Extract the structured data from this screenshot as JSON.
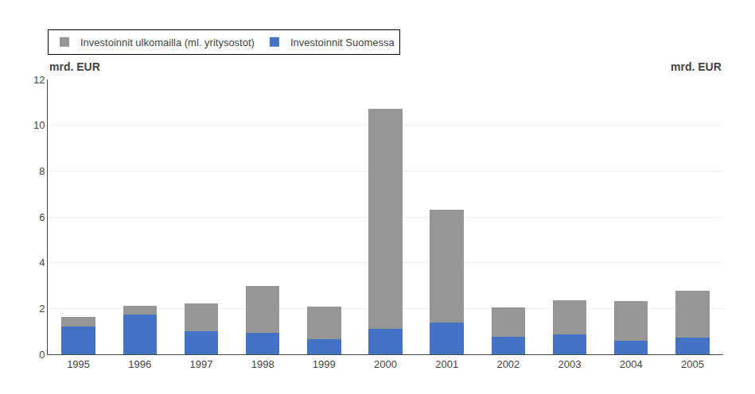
{
  "chart_data": {
    "type": "bar",
    "stacked": true,
    "categories": [
      "1995",
      "1996",
      "1997",
      "1998",
      "1999",
      "2000",
      "2001",
      "2002",
      "2003",
      "2004",
      "2005"
    ],
    "series": [
      {
        "name": "Investoinnit Suomessa",
        "color": "#4472C4",
        "values": [
          1.2,
          1.75,
          1.0,
          0.95,
          0.65,
          1.1,
          1.4,
          0.75,
          0.85,
          0.6,
          0.72
        ]
      },
      {
        "name": "Investoinnit ulkomailla (ml. yritysostot)",
        "color": "#969696",
        "values": [
          0.42,
          0.38,
          1.22,
          2.02,
          1.42,
          9.62,
          4.9,
          1.28,
          1.52,
          1.72,
          2.06
        ]
      }
    ],
    "ylabel": "mrd. EUR",
    "ylabel_right": "mrd. EUR",
    "ylim": [
      0,
      12
    ],
    "yticks": [
      0,
      2,
      4,
      6,
      8,
      10,
      12
    ],
    "grid": true,
    "legend": "top left"
  }
}
